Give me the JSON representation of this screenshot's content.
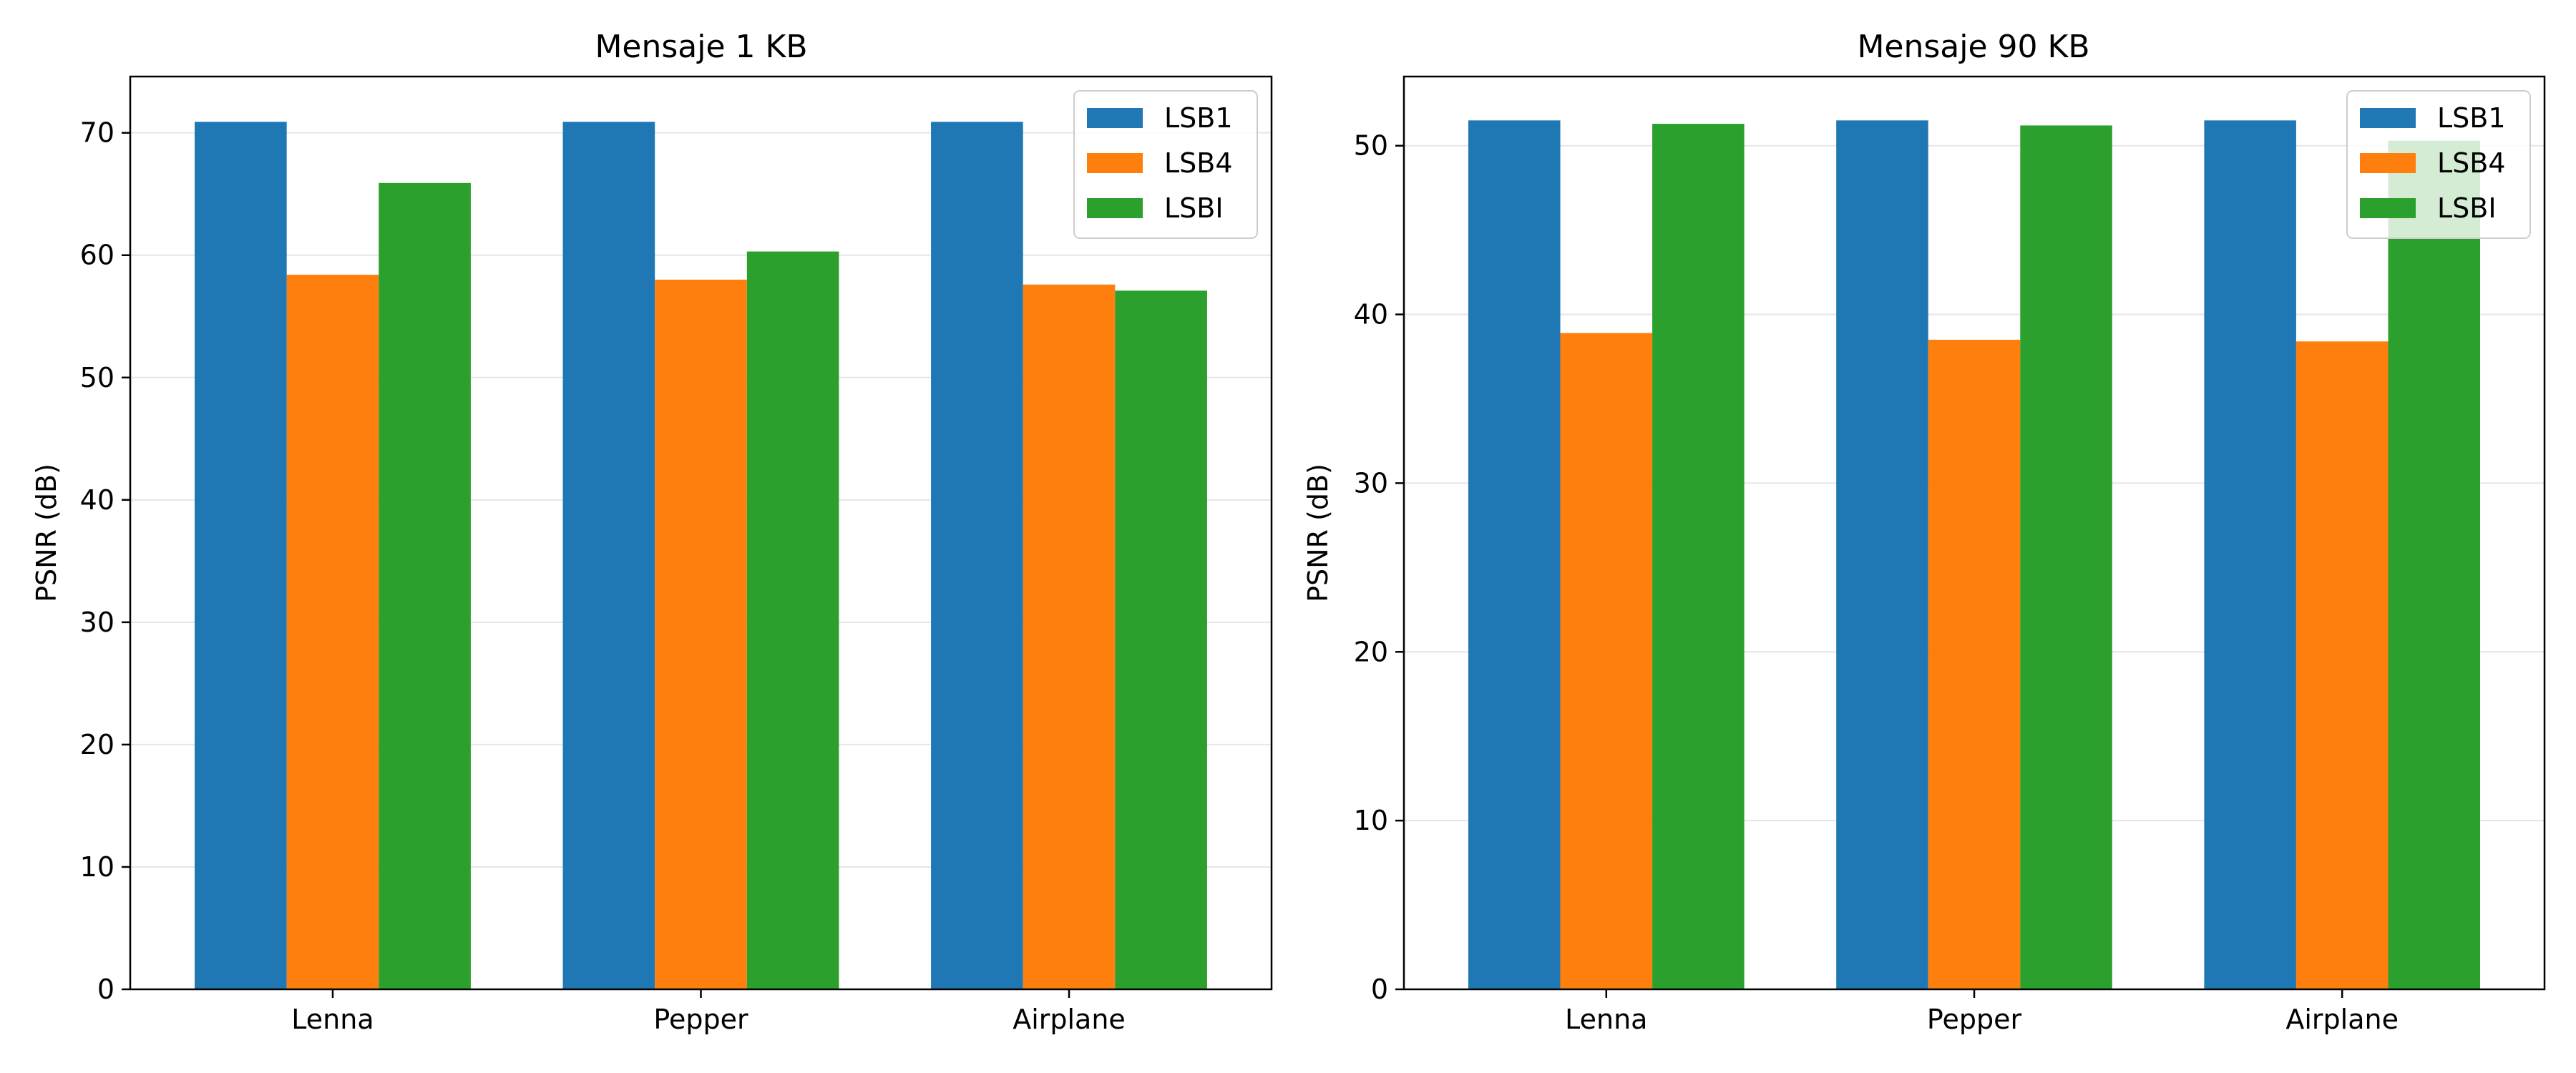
{
  "chart_data": [
    {
      "type": "bar",
      "title": "Mensaje 1 KB",
      "xlabel": "",
      "ylabel": "PSNR (dB)",
      "ylim": [
        0,
        74.6
      ],
      "yticks": [
        0,
        10,
        20,
        30,
        40,
        50,
        60,
        70
      ],
      "grid": "horizontal",
      "legend_position": "top-right",
      "categories": [
        "Lenna",
        "Pepper",
        "Airplane"
      ],
      "series": [
        {
          "name": "LSB1",
          "color": "#1f77b4",
          "values": [
            70.9,
            70.9,
            70.9
          ]
        },
        {
          "name": "LSB4",
          "color": "#ff7f0e",
          "values": [
            58.4,
            58.0,
            57.6
          ]
        },
        {
          "name": "LSBI",
          "color": "#2ca02c",
          "values": [
            65.9,
            60.3,
            57.1
          ]
        }
      ]
    },
    {
      "type": "bar",
      "title": "Mensaje 90 KB",
      "xlabel": "",
      "ylabel": "PSNR (dB)",
      "ylim": [
        0,
        54.1
      ],
      "yticks": [
        0,
        10,
        20,
        30,
        40,
        50
      ],
      "grid": "horizontal",
      "legend_position": "top-right",
      "categories": [
        "Lenna",
        "Pepper",
        "Airplane"
      ],
      "series": [
        {
          "name": "LSB1",
          "color": "#1f77b4",
          "values": [
            51.5,
            51.5,
            51.5
          ]
        },
        {
          "name": "LSB4",
          "color": "#ff7f0e",
          "values": [
            38.9,
            38.5,
            38.4
          ]
        },
        {
          "name": "LSBI",
          "color": "#2ca02c",
          "values": [
            51.3,
            51.2,
            50.3
          ]
        }
      ]
    }
  ]
}
